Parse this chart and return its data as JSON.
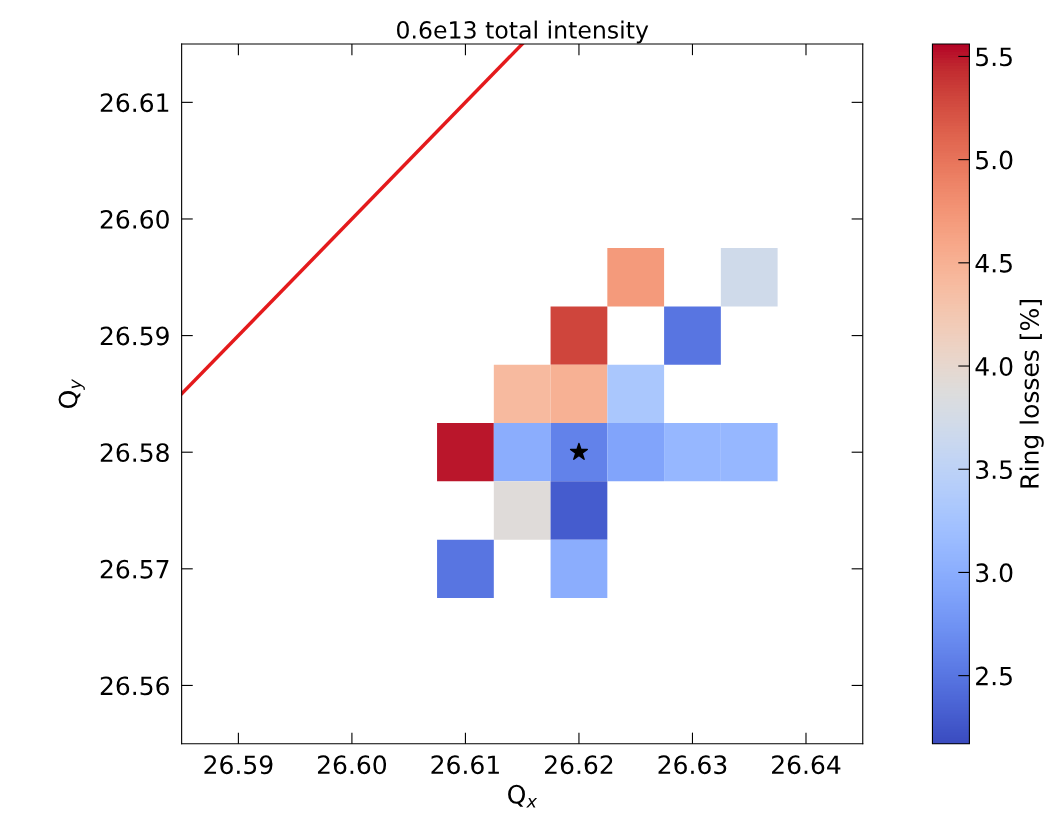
{
  "chart_data": {
    "type": "heatmap",
    "title": "0.6e13 total intensity",
    "xlabel": "Q$_{x}$",
    "ylabel": "Q$_{y}$",
    "clabel": "Ring losses [%]",
    "x": [
      26.61,
      26.615,
      26.62,
      26.625,
      26.63,
      26.635
    ],
    "y": [
      26.595,
      26.59,
      26.585,
      26.58,
      26.575,
      26.57
    ],
    "cells": [
      [
        null,
        null,
        null,
        4.7,
        null,
        3.7
      ],
      [
        null,
        null,
        5.3,
        null,
        2.5,
        null
      ],
      [
        null,
        4.4,
        4.5,
        3.3,
        null,
        null
      ],
      [
        5.5,
        3.0,
        2.6,
        2.9,
        3.1,
        3.1
      ],
      [
        null,
        3.9,
        2.3,
        null,
        null,
        null
      ],
      [
        2.5,
        null,
        3.0,
        null,
        null,
        null
      ]
    ],
    "clim": [
      2.17,
      5.56
    ],
    "cticks": [
      2.5,
      {
        "value": 3,
        "label": "3.0"
      },
      3.5,
      {
        "value": 4,
        "label": "4.0"
      },
      4.5,
      {
        "value": 5,
        "label": "5.0"
      },
      5.5
    ],
    "xlim": [
      26.585,
      26.645
    ],
    "ylim": [
      26.555,
      26.615
    ],
    "xticks": [
      26.59,
      {
        "value": 26.6,
        "label": "26.60"
      },
      26.61,
      26.62,
      26.63,
      26.64
    ],
    "yticks": [
      26.56,
      26.57,
      26.58,
      26.59,
      {
        "value": 26.6,
        "label": "26.60"
      },
      26.61
    ],
    "series": [
      {
        "type": "line",
        "color": "#e41a1c",
        "x": [
          26.585,
          26.615
        ],
        "values": [
          26.585,
          26.615
        ]
      },
      {
        "type": "scatter",
        "color": "#000000",
        "marker": "star",
        "x": [
          26.62
        ],
        "values": [
          26.58
        ]
      }
    ],
    "grid": false
  }
}
